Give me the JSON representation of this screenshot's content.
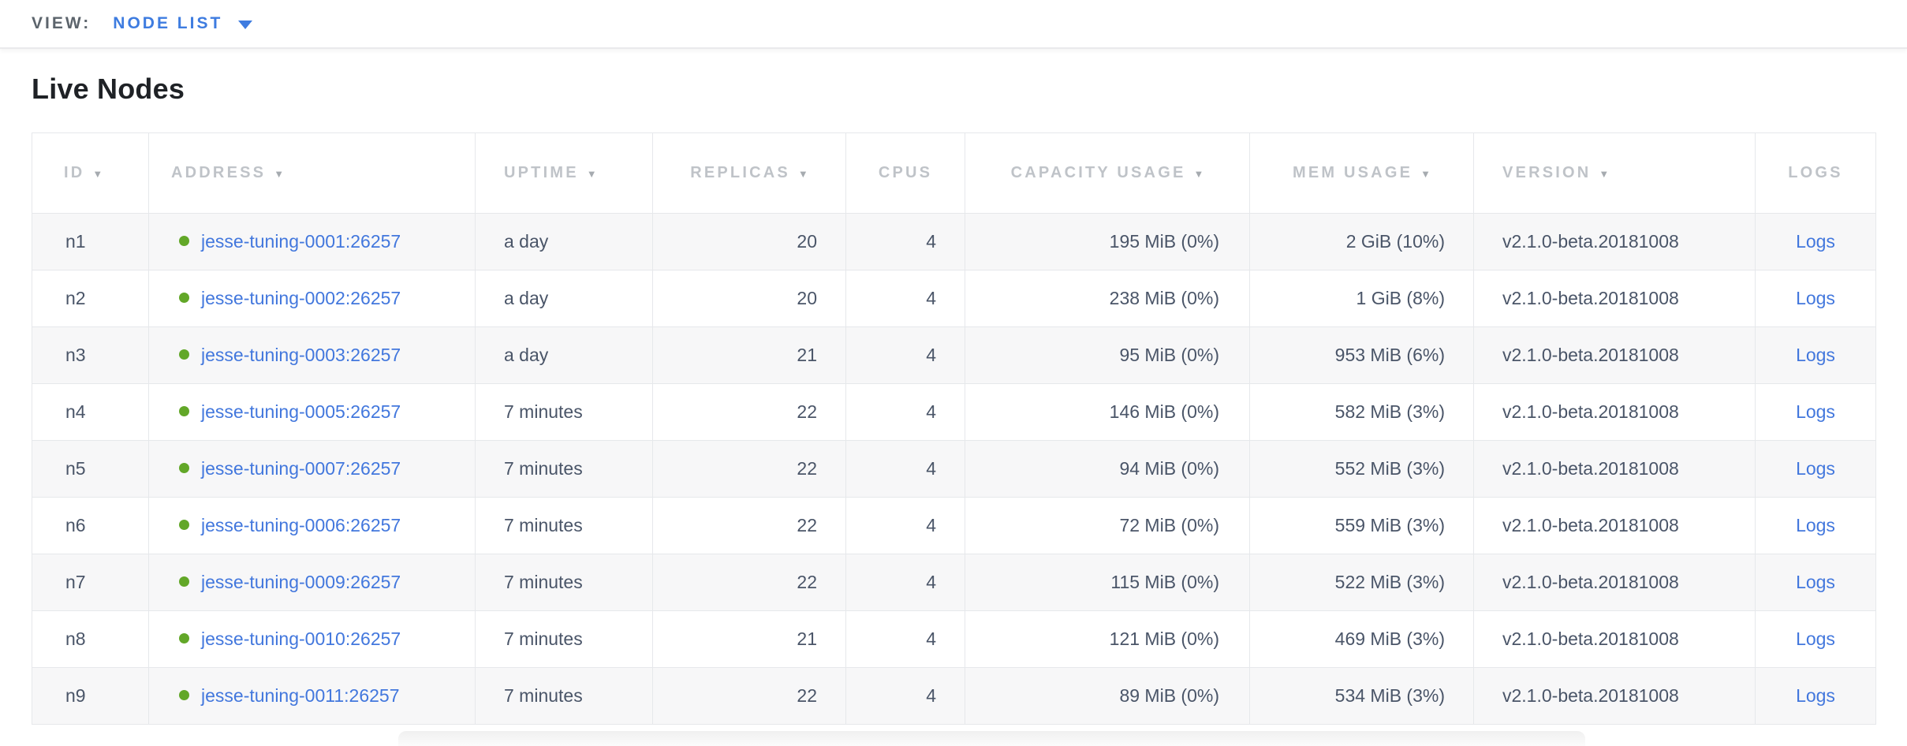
{
  "view_bar": {
    "label": "VIEW:",
    "selected": "NODE LIST"
  },
  "page": {
    "title": "Live Nodes"
  },
  "icons": {
    "sort_desc": "▼",
    "dropdown_caret": "caret-down",
    "live_status": "green-dot"
  },
  "colors": {
    "link_blue": "#4277dd",
    "status_green": "#62a728",
    "header_gray": "#bfc3c8",
    "body_slate": "#4a5568"
  },
  "table": {
    "columns": [
      {
        "key": "id",
        "label": "ID",
        "sorted": true
      },
      {
        "key": "address",
        "label": "ADDRESS",
        "sorted": true
      },
      {
        "key": "uptime",
        "label": "UPTIME",
        "sorted": true
      },
      {
        "key": "replicas",
        "label": "REPLICAS",
        "sorted": true
      },
      {
        "key": "cpus",
        "label": "CPUS",
        "sorted": false
      },
      {
        "key": "capacity",
        "label": "CAPACITY USAGE",
        "sorted": true
      },
      {
        "key": "mem",
        "label": "MEM USAGE",
        "sorted": true
      },
      {
        "key": "version",
        "label": "VERSION",
        "sorted": true
      },
      {
        "key": "logs",
        "label": "LOGS",
        "sorted": false
      }
    ],
    "rows": [
      {
        "id": "n1",
        "address": "jesse-tuning-0001:26257",
        "uptime": "a day",
        "replicas": "20",
        "cpus": "4",
        "capacity": "195 MiB (0%)",
        "mem": "2 GiB (10%)",
        "version": "v2.1.0-beta.20181008",
        "logs": "Logs"
      },
      {
        "id": "n2",
        "address": "jesse-tuning-0002:26257",
        "uptime": "a day",
        "replicas": "20",
        "cpus": "4",
        "capacity": "238 MiB (0%)",
        "mem": "1 GiB (8%)",
        "version": "v2.1.0-beta.20181008",
        "logs": "Logs"
      },
      {
        "id": "n3",
        "address": "jesse-tuning-0003:26257",
        "uptime": "a day",
        "replicas": "21",
        "cpus": "4",
        "capacity": "95 MiB (0%)",
        "mem": "953 MiB (6%)",
        "version": "v2.1.0-beta.20181008",
        "logs": "Logs"
      },
      {
        "id": "n4",
        "address": "jesse-tuning-0005:26257",
        "uptime": "7 minutes",
        "replicas": "22",
        "cpus": "4",
        "capacity": "146 MiB (0%)",
        "mem": "582 MiB (3%)",
        "version": "v2.1.0-beta.20181008",
        "logs": "Logs"
      },
      {
        "id": "n5",
        "address": "jesse-tuning-0007:26257",
        "uptime": "7 minutes",
        "replicas": "22",
        "cpus": "4",
        "capacity": "94 MiB (0%)",
        "mem": "552 MiB (3%)",
        "version": "v2.1.0-beta.20181008",
        "logs": "Logs"
      },
      {
        "id": "n6",
        "address": "jesse-tuning-0006:26257",
        "uptime": "7 minutes",
        "replicas": "22",
        "cpus": "4",
        "capacity": "72 MiB (0%)",
        "mem": "559 MiB (3%)",
        "version": "v2.1.0-beta.20181008",
        "logs": "Logs"
      },
      {
        "id": "n7",
        "address": "jesse-tuning-0009:26257",
        "uptime": "7 minutes",
        "replicas": "22",
        "cpus": "4",
        "capacity": "115 MiB (0%)",
        "mem": "522 MiB (3%)",
        "version": "v2.1.0-beta.20181008",
        "logs": "Logs"
      },
      {
        "id": "n8",
        "address": "jesse-tuning-0010:26257",
        "uptime": "7 minutes",
        "replicas": "21",
        "cpus": "4",
        "capacity": "121 MiB (0%)",
        "mem": "469 MiB (3%)",
        "version": "v2.1.0-beta.20181008",
        "logs": "Logs"
      },
      {
        "id": "n9",
        "address": "jesse-tuning-0011:26257",
        "uptime": "7 minutes",
        "replicas": "22",
        "cpus": "4",
        "capacity": "89 MiB (0%)",
        "mem": "534 MiB (3%)",
        "version": "v2.1.0-beta.20181008",
        "logs": "Logs"
      }
    ]
  }
}
